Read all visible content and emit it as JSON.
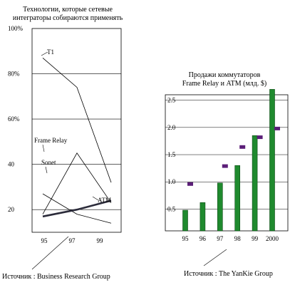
{
  "chart_data": [
    {
      "type": "line",
      "title_lines": [
        "Технологии, которые сетевые",
        "интеграторы собираются применять"
      ],
      "x": [
        "95",
        "97",
        "99"
      ],
      "y_ticks": [
        "100%",
        "80%",
        "60%",
        "40",
        "20"
      ],
      "ylim": [
        10,
        100
      ],
      "grid": true,
      "series": [
        {
          "name": "T1",
          "values": [
            87,
            74,
            32
          ]
        },
        {
          "name": "Frame Relay",
          "values": [
            18,
            45,
            23
          ]
        },
        {
          "name": "Sonet",
          "values": [
            27,
            18,
            14
          ]
        },
        {
          "name": "ATM",
          "values": [
            17,
            20,
            24
          ]
        }
      ],
      "colors": {
        "line": "#000000",
        "atm": "#2b2b3a",
        "grid": "#000000"
      },
      "source": "Источник : Business Research Group"
    },
    {
      "type": "bar",
      "title_lines": [
        "Продажи коммутаторов",
        "Frame Relay и ATM (млд. $)"
      ],
      "categories": [
        "95",
        "96",
        "97",
        "98",
        "99",
        "2000"
      ],
      "series": [
        {
          "values": [
            0.48,
            0.62,
            0.98,
            1.3,
            1.85,
            2.7
          ]
        },
        {
          "values": [
            0.96,
            null,
            1.29,
            1.64,
            1.82,
            1.98
          ]
        }
      ],
      "y_ticks": [
        "2.5",
        "2.0",
        "1.5",
        "1.0",
        "0.5"
      ],
      "ylim": [
        0.1,
        2.6
      ],
      "grid": true,
      "colors": {
        "bar": "#1f8a2e",
        "bar_edge": "#0c4a14",
        "marker": "#5b1e78"
      },
      "source": "Источник : The YanKie Group"
    }
  ]
}
